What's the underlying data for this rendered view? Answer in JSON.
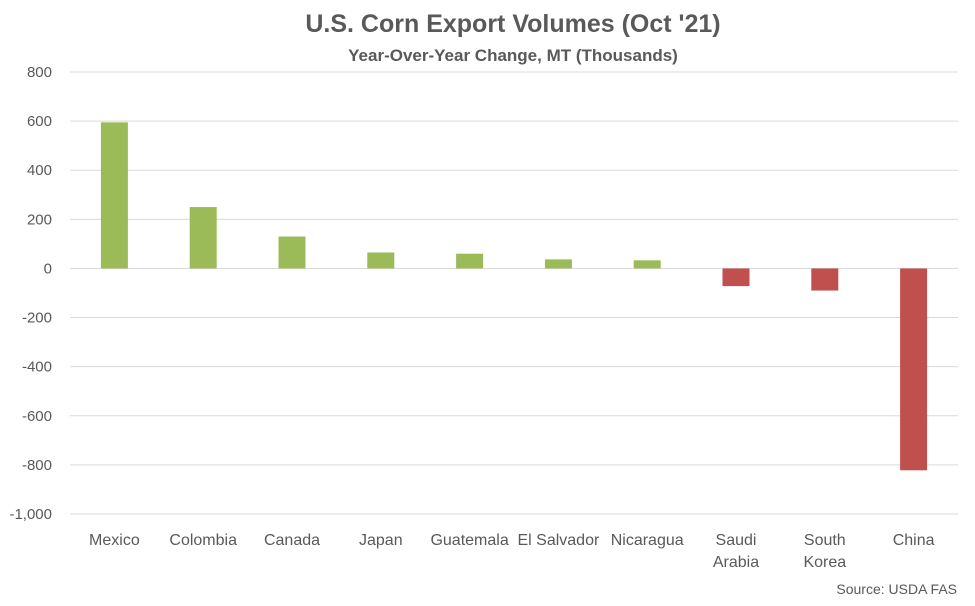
{
  "chart_data": {
    "type": "bar",
    "title": "U.S. Corn Export Volumes (Oct '21)",
    "subtitle": "Year-Over-Year Change, MT (Thousands)",
    "source": "Source: USDA FAS",
    "categories": [
      [
        "Mexico"
      ],
      [
        "Colombia"
      ],
      [
        "Canada"
      ],
      [
        "Japan"
      ],
      [
        "Guatemala"
      ],
      [
        "El Salvador"
      ],
      [
        "Nicaragua"
      ],
      [
        "Saudi",
        "Arabia"
      ],
      [
        "South",
        "Korea"
      ],
      [
        "China"
      ]
    ],
    "values": [
      595,
      250,
      130,
      65,
      60,
      37,
      33,
      -72,
      -90,
      -822
    ],
    "ylim": [
      -1000,
      800
    ],
    "yticks": [
      800,
      600,
      400,
      200,
      0,
      -200,
      -400,
      -600,
      -800,
      -1000
    ],
    "ytick_labels": [
      "800",
      "600",
      "400",
      "200",
      "0",
      "-200",
      "-400",
      "-600",
      "-800",
      "-1,000"
    ],
    "grid": true,
    "legend": "none",
    "colors": {
      "positive": "#9BBB59",
      "negative": "#C0504D",
      "grid": "#D9D9D9",
      "title": "#595959",
      "text": "#595959"
    }
  }
}
